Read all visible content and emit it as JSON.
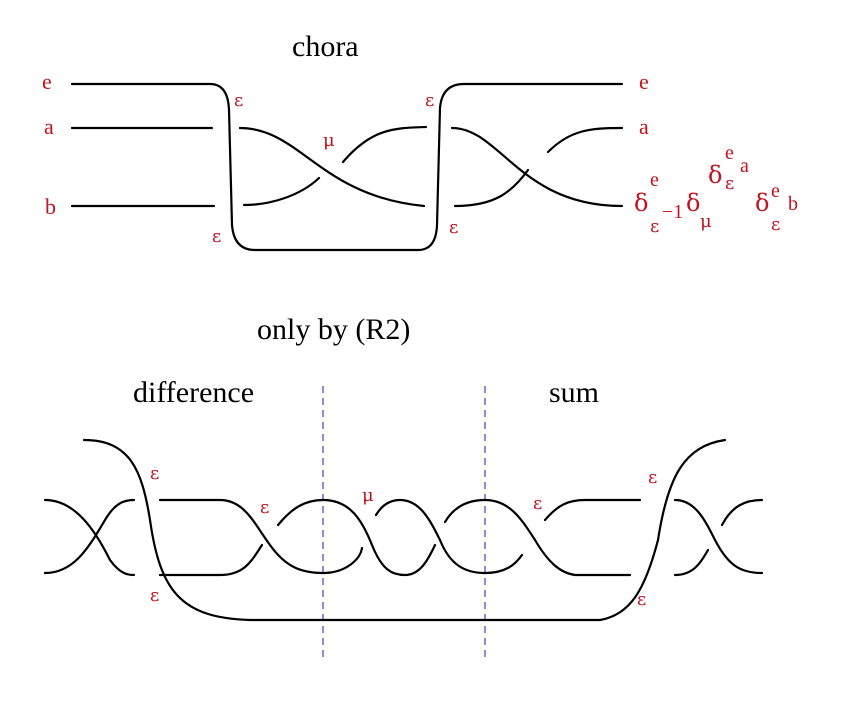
{
  "titles": {
    "chora": "chora",
    "only_by": "only by (R2)",
    "difference": "difference",
    "sum": "sum"
  },
  "left_labels": {
    "e": "e",
    "a": "a",
    "b": "b"
  },
  "right_labels": {
    "e": "e",
    "a": "a"
  },
  "crossing_labels": {
    "epsilon": "ε",
    "mu": "μ"
  },
  "formula": {
    "delta": "δ",
    "epsilon": "ε",
    "mu": "μ",
    "e": "e",
    "a": "a",
    "b": "b",
    "neg_one": "−1"
  },
  "colors": {
    "label": "#c0141e",
    "strand": "#000000",
    "guide": "#4a4acc"
  }
}
